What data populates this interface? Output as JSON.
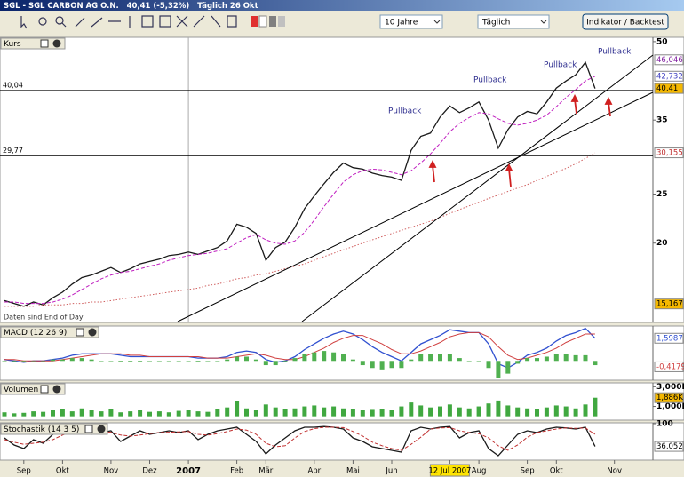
{
  "window": {
    "title": "SGL - SGL CARBON AG O.N.   40,41 (-5,32%)   Täglich 26 Okt",
    "period": "10 Jahre",
    "interval": "Täglich",
    "button": "Indikator / Backtest"
  },
  "chart_data": [
    {
      "type": "line",
      "title": "Kurs",
      "log": true,
      "ylim": [
        14,
        51
      ],
      "yticks": [
        20,
        25,
        35,
        50
      ],
      "note": "Daten sind End of Day",
      "annotations": [
        "Pullback",
        "Pullback",
        "Pullback",
        "Pullback"
      ],
      "hlines": [
        {
          "value": 40.04,
          "label": "40,04"
        },
        {
          "value": 29.77,
          "label": "29,77"
        }
      ],
      "series": [
        {
          "color": "#1a1a1a",
          "style": "solid",
          "values": [
            15.4,
            15.2,
            15.0,
            15.3,
            15.1,
            15.6,
            16.0,
            16.6,
            17.1,
            17.3,
            17.6,
            17.9,
            17.5,
            17.8,
            18.2,
            18.4,
            18.6,
            18.9,
            19.0,
            19.2,
            19.0,
            19.3,
            19.6,
            20.2,
            21.8,
            21.5,
            20.9,
            18.5,
            19.6,
            20.1,
            21.5,
            23.4,
            24.8,
            26.2,
            27.6,
            28.8,
            28.2,
            28.0,
            27.5,
            27.2,
            27.0,
            26.6,
            30.5,
            32.5,
            33.0,
            35.5,
            37.3,
            36.2,
            37.0,
            38.0,
            35.0,
            30.8,
            33.5,
            35.5,
            36.4,
            36.0,
            38.0,
            40.5,
            41.8,
            43.0,
            45.5,
            40.41,
            null,
            null
          ]
        },
        {
          "color": "#c020c0",
          "style": "dashed",
          "values": [
            15.3,
            15.3,
            15.2,
            15.2,
            15.2,
            15.3,
            15.5,
            15.8,
            16.2,
            16.6,
            17.0,
            17.3,
            17.5,
            17.6,
            17.8,
            18.0,
            18.2,
            18.5,
            18.7,
            18.9,
            19.0,
            19.1,
            19.3,
            19.5,
            20.0,
            20.5,
            20.8,
            20.3,
            20.0,
            19.9,
            20.2,
            21.0,
            22.2,
            23.6,
            25.0,
            26.4,
            27.3,
            27.8,
            28.0,
            27.9,
            27.6,
            27.3,
            27.8,
            28.8,
            30.0,
            31.5,
            33.2,
            34.5,
            35.4,
            36.2,
            36.0,
            35.2,
            34.5,
            34.2,
            34.5,
            35.0,
            35.8,
            37.2,
            38.8,
            40.2,
            41.8,
            42.732,
            null,
            null
          ]
        },
        {
          "color": "#d06060",
          "style": "dotted",
          "values": [
            15.0,
            15.0,
            15.0,
            15.0,
            15.1,
            15.1,
            15.1,
            15.2,
            15.2,
            15.3,
            15.3,
            15.4,
            15.5,
            15.6,
            15.7,
            15.8,
            15.9,
            16.0,
            16.1,
            16.2,
            16.3,
            16.5,
            16.6,
            16.8,
            17.0,
            17.1,
            17.3,
            17.4,
            17.6,
            17.8,
            18.0,
            18.2,
            18.5,
            18.8,
            19.1,
            19.4,
            19.7,
            20.0,
            20.3,
            20.6,
            20.9,
            21.2,
            21.5,
            21.8,
            22.1,
            22.5,
            22.9,
            23.3,
            23.7,
            24.1,
            24.5,
            24.9,
            25.3,
            25.7,
            26.1,
            26.6,
            27.1,
            27.6,
            28.1,
            28.7,
            29.4,
            30.155,
            null,
            null
          ]
        }
      ],
      "markers": [
        {
          "value": 46.046,
          "label": "46,046",
          "color": "#8020a0",
          "background": "#ffffff"
        },
        {
          "value": 42.732,
          "label": "42,732",
          "color": "#4040c0",
          "background": "#ffffff"
        },
        {
          "value": 40.41,
          "label": "40,41",
          "color": "#000000",
          "background": "#f5b800"
        },
        {
          "value": 30.155,
          "label": "30,155",
          "color": "#c03030",
          "background": "#ffffff"
        },
        {
          "value": 15.167,
          "label": "15,167",
          "color": "#000000",
          "background": "#f5b800"
        }
      ]
    },
    {
      "type": "line",
      "title": "MACD (12 26 9)",
      "ylim": [
        -1.3,
        2.4
      ],
      "series": [
        {
          "color": "#3050d0",
          "style": "solid",
          "values": [
            0.1,
            0.0,
            -0.1,
            0.0,
            0.0,
            0.1,
            0.2,
            0.4,
            0.5,
            0.5,
            0.5,
            0.5,
            0.4,
            0.3,
            0.3,
            0.3,
            0.3,
            0.3,
            0.3,
            0.3,
            0.2,
            0.2,
            0.2,
            0.3,
            0.6,
            0.7,
            0.6,
            0.1,
            -0.1,
            0.0,
            0.3,
            0.8,
            1.2,
            1.6,
            1.9,
            2.1,
            1.9,
            1.5,
            1.0,
            0.6,
            0.3,
            0.0,
            0.6,
            1.2,
            1.5,
            1.8,
            2.2,
            2.1,
            2.0,
            2.0,
            1.2,
            -0.2,
            -0.5,
            -0.1,
            0.4,
            0.6,
            0.9,
            1.4,
            1.8,
            2.0,
            2.3,
            1.6,
            null,
            null
          ]
        },
        {
          "color": "#d04040",
          "style": "solid",
          "values": [
            0.1,
            0.1,
            0.0,
            0.0,
            0.0,
            0.0,
            0.1,
            0.2,
            0.3,
            0.4,
            0.5,
            0.5,
            0.5,
            0.4,
            0.4,
            0.3,
            0.3,
            0.3,
            0.3,
            0.3,
            0.3,
            0.2,
            0.2,
            0.2,
            0.3,
            0.4,
            0.5,
            0.4,
            0.2,
            0.1,
            0.1,
            0.3,
            0.6,
            0.9,
            1.3,
            1.6,
            1.8,
            1.8,
            1.5,
            1.2,
            0.8,
            0.5,
            0.5,
            0.7,
            1.0,
            1.3,
            1.7,
            1.9,
            2.0,
            2.0,
            1.7,
            1.0,
            0.4,
            0.1,
            0.2,
            0.4,
            0.6,
            0.9,
            1.3,
            1.6,
            1.9,
            1.9,
            null,
            null
          ]
        },
        {
          "type": "bar",
          "color": "#50b050",
          "values": [
            0.0,
            -0.1,
            -0.1,
            0.0,
            0.0,
            0.1,
            0.1,
            0.2,
            0.2,
            0.1,
            0.0,
            0.0,
            -0.1,
            -0.1,
            -0.1,
            0.0,
            0.0,
            0.0,
            0.0,
            0.0,
            -0.1,
            0.0,
            0.0,
            0.1,
            0.3,
            0.3,
            0.1,
            -0.3,
            -0.3,
            -0.1,
            0.2,
            0.5,
            0.6,
            0.7,
            0.6,
            0.5,
            0.1,
            -0.3,
            -0.5,
            -0.6,
            -0.5,
            -0.5,
            0.1,
            0.5,
            0.5,
            0.5,
            0.5,
            0.2,
            0.0,
            0.0,
            -0.5,
            -1.2,
            -0.9,
            -0.2,
            0.2,
            0.2,
            0.3,
            0.5,
            0.5,
            0.4,
            0.4,
            -0.3,
            null,
            null
          ]
        }
      ],
      "markers": [
        {
          "value": 1.5987,
          "label": "1,5987",
          "color": "#3050d0",
          "background": "#ffffff"
        },
        {
          "value": -0.4179,
          "label": "-0,4179",
          "color": "#d04040",
          "background": "#ffffff"
        }
      ]
    },
    {
      "type": "bar",
      "title": "Volumen",
      "ylim": [
        -300,
        3300
      ],
      "yticks": [
        {
          "value": 3000,
          "label": "3,000K"
        },
        {
          "value": 1000,
          "label": "1,000K"
        }
      ],
      "series": [
        {
          "color": "#40a840",
          "values": [
            400,
            300,
            350,
            500,
            450,
            600,
            700,
            500,
            800,
            600,
            500,
            700,
            400,
            500,
            600,
            450,
            500,
            400,
            550,
            600,
            500,
            450,
            700,
            900,
            1500,
            800,
            600,
            1200,
            900,
            700,
            800,
            1000,
            1100,
            900,
            1000,
            800,
            700,
            600,
            650,
            700,
            600,
            1000,
            1400,
            1100,
            900,
            1000,
            1200,
            900,
            800,
            1000,
            1300,
            1600,
            1100,
            900,
            800,
            700,
            900,
            1100,
            1000,
            800,
            1200,
            1886,
            null,
            null
          ]
        }
      ],
      "markers": [
        {
          "value": 1886,
          "label": "1,886K",
          "color": "#000000",
          "background": "#f5b800"
        }
      ]
    },
    {
      "type": "line",
      "title": "Stochastik (14 3 5)",
      "ylim": [
        0,
        100
      ],
      "yticks": [
        100
      ],
      "categories": [
        null,
        null,
        "Sep",
        null,
        null,
        null,
        "Okt",
        null,
        null,
        null,
        null,
        "Nov",
        null,
        null,
        null,
        "Dez",
        null,
        null,
        null,
        "2007",
        null,
        null,
        null,
        null,
        "Feb",
        null,
        null,
        "Mär",
        null,
        null,
        null,
        null,
        "Apr",
        null,
        null,
        null,
        "Mai",
        null,
        null,
        null,
        "Jun",
        null,
        null,
        null,
        null,
        null,
        "12 Jul 2007",
        null,
        null,
        "Aug",
        null,
        null,
        null,
        null,
        "Sep",
        null,
        null,
        "Okt",
        null,
        null,
        null,
        null,
        null,
        "Nov"
      ],
      "series": [
        {
          "color": "#1a1a1a",
          "style": "solid",
          "values": [
            60,
            40,
            30,
            55,
            45,
            70,
            85,
            80,
            85,
            70,
            75,
            80,
            50,
            65,
            80,
            70,
            75,
            80,
            75,
            80,
            55,
            70,
            80,
            85,
            90,
            70,
            50,
            15,
            40,
            60,
            80,
            90,
            90,
            92,
            90,
            85,
            60,
            50,
            35,
            30,
            25,
            20,
            80,
            90,
            85,
            90,
            92,
            60,
            75,
            80,
            30,
            10,
            40,
            70,
            80,
            75,
            85,
            90,
            88,
            85,
            90,
            36.052,
            null,
            null
          ]
        },
        {
          "color": "#c03030",
          "style": "dashed",
          "values": [
            55,
            48,
            42,
            45,
            48,
            55,
            68,
            78,
            82,
            78,
            76,
            76,
            68,
            65,
            68,
            72,
            75,
            76,
            77,
            78,
            70,
            68,
            72,
            78,
            85,
            82,
            70,
            45,
            35,
            38,
            60,
            78,
            86,
            90,
            90,
            89,
            78,
            65,
            48,
            38,
            30,
            25,
            42,
            62,
            85,
            88,
            89,
            80,
            75,
            72,
            60,
            38,
            25,
            40,
            62,
            75,
            80,
            85,
            88,
            87,
            88,
            70,
            null,
            null
          ]
        }
      ],
      "markers": [
        {
          "value": 36.052,
          "label": "36,052",
          "color": "#000000",
          "background": "#ffffff"
        }
      ]
    }
  ]
}
